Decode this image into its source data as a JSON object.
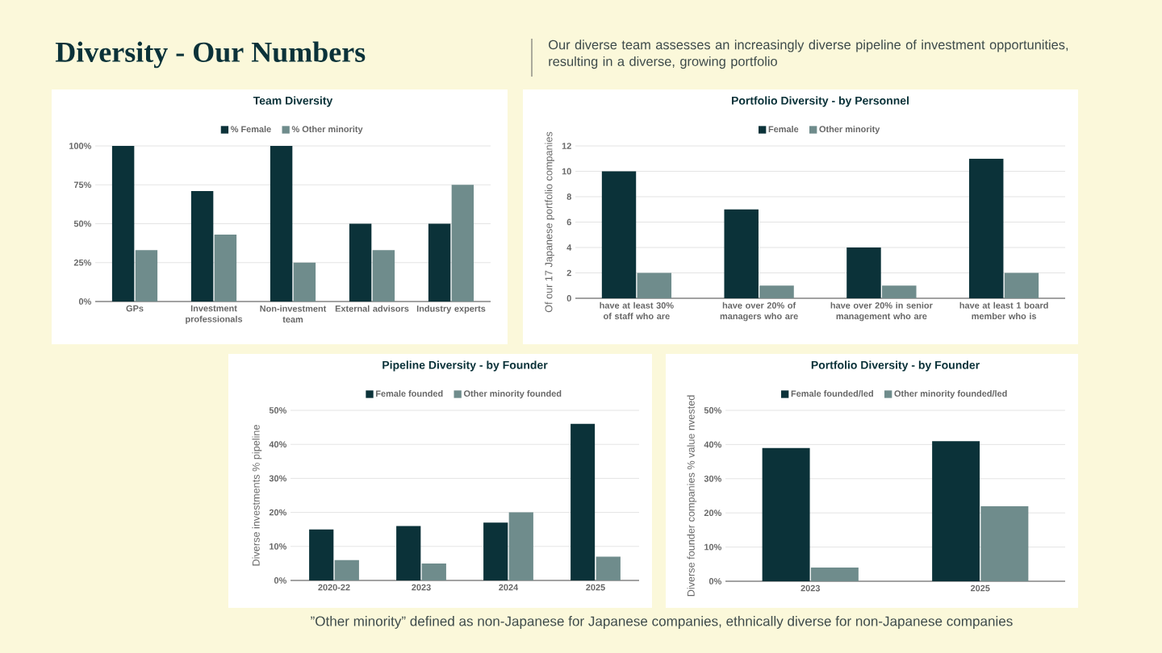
{
  "chart_data": [
    {
      "type": "other",
      "title": "Diversity - Our Numbers",
      "subtitle": "Our diverse team assesses an increasingly diverse pipeline of investment opportunities, resulting in a diverse, growing portfolio",
      "annotations": [
        "”Other minority” defined as non-Japanese for Japanese companies, ethnically diverse for non-Japanese companies"
      ]
    },
    {
      "type": "bar",
      "title": "Team Diversity",
      "categories": [
        "GPs",
        "Investment professionals",
        "Non-investment team",
        "External advisors",
        "Industry experts"
      ],
      "series": [
        {
          "name": "% Female",
          "color": "#0b3239",
          "values": [
            100,
            71,
            100,
            50,
            50
          ]
        },
        {
          "name": "% Other minority",
          "color": "#6f8c8c",
          "values": [
            33,
            43,
            25,
            33,
            75
          ]
        }
      ],
      "ylim": [
        0,
        100
      ],
      "yticks": [
        {
          "value": 0,
          "label": "0%"
        },
        {
          "value": 25,
          "label": "25%"
        },
        {
          "value": 50,
          "label": "50%"
        },
        {
          "value": 75,
          "label": "75%"
        },
        {
          "value": 100,
          "label": "100%"
        }
      ],
      "grid": "y",
      "legend": "top"
    },
    {
      "type": "bar",
      "title": "Portfolio Diversity - by Personnel",
      "ylabel": "Of our 17 Japanese portfolio companies",
      "categories": [
        "have at least 30% of staff who are",
        "have over 20% of managers who are",
        "have over 20% in senior management who are",
        "have at least 1 board member who is"
      ],
      "series": [
        {
          "name": "Female",
          "color": "#0b3239",
          "values": [
            10,
            7,
            4,
            11
          ]
        },
        {
          "name": "Other minority",
          "color": "#6f8c8c",
          "values": [
            2,
            1,
            1,
            2
          ]
        }
      ],
      "ylim": [
        0,
        12
      ],
      "yticks": [
        0,
        2,
        4,
        6,
        8,
        10,
        12
      ],
      "grid": "y",
      "legend": "top"
    },
    {
      "type": "bar",
      "title": "Pipeline Diversity - by Founder",
      "ylabel": "Diverse investments % pipeline",
      "categories": [
        "2020-22",
        "2023",
        "2024",
        "2025"
      ],
      "series": [
        {
          "name": "Female founded",
          "color": "#0b3239",
          "values": [
            15,
            16,
            17,
            46
          ]
        },
        {
          "name": "Other minority founded",
          "color": "#6f8c8c",
          "values": [
            6,
            5,
            20,
            7
          ]
        }
      ],
      "ylim": [
        0,
        50
      ],
      "yticks": [
        {
          "value": 0,
          "label": "0%"
        },
        {
          "value": 10,
          "label": "10%"
        },
        {
          "value": 20,
          "label": "20%"
        },
        {
          "value": 30,
          "label": "30%"
        },
        {
          "value": 40,
          "label": "40%"
        },
        {
          "value": 50,
          "label": "50%"
        }
      ],
      "grid": "y",
      "legend": "top"
    },
    {
      "type": "bar",
      "title": "Portfolio Diversity - by Founder",
      "ylabel": "Diverse founder companies % value nvested",
      "categories": [
        "2023",
        "2025"
      ],
      "series": [
        {
          "name": "Female founded/led",
          "color": "#0b3239",
          "values": [
            39,
            41
          ]
        },
        {
          "name": "Other minority founded/led",
          "color": "#6f8c8c",
          "values": [
            4,
            22
          ]
        }
      ],
      "ylim": [
        0,
        50
      ],
      "yticks": [
        {
          "value": 0,
          "label": "0%"
        },
        {
          "value": 10,
          "label": "10%"
        },
        {
          "value": 20,
          "label": "20%"
        },
        {
          "value": 30,
          "label": "30%"
        },
        {
          "value": 40,
          "label": "40%"
        },
        {
          "value": 50,
          "label": "50%"
        }
      ],
      "grid": "y",
      "legend": "top"
    }
  ]
}
